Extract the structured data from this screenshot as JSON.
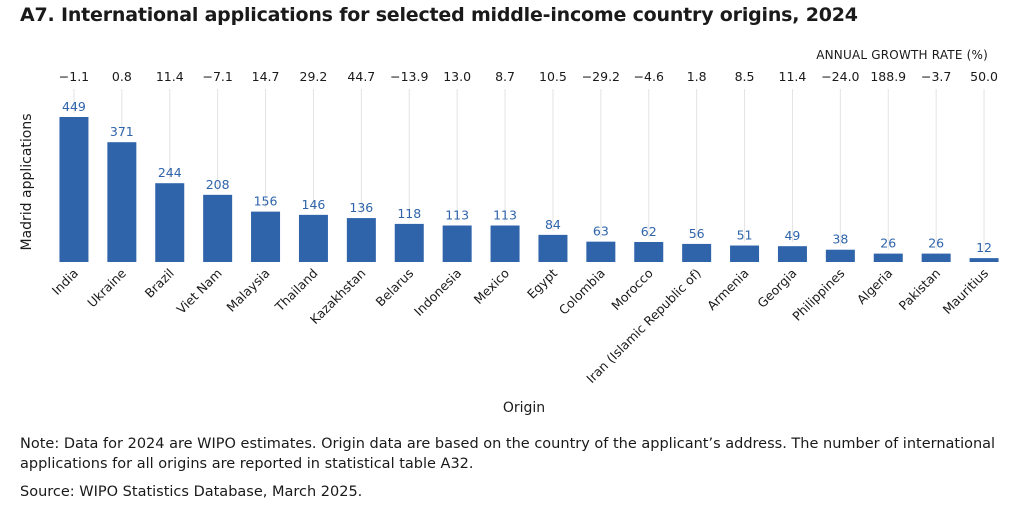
{
  "title": "A7. International applications for selected middle-income country origins, 2024",
  "growth_header": "ANNUAL GROWTH RATE (%)",
  "note": "Note: Data for 2024 are WIPO estimates. Origin data are based on the country of the applicant’s address. The number of international applications for all origins are reported in statistical table A32.",
  "source": "Source: WIPO Statistics Database, March 2025.",
  "chart_data": {
    "type": "bar",
    "title": "A7. International applications for selected middle-income country origins, 2024",
    "xlabel": "Origin",
    "ylabel": "Madrid applications",
    "ylim": [
      0,
      449
    ],
    "grid": false,
    "bar_color": "#2f64ab",
    "label_color": "#2f64ab",
    "categories": [
      "India",
      "Ukraine",
      "Brazil",
      "Viet Nam",
      "Malaysia",
      "Thailand",
      "Kazakhstan",
      "Belarus",
      "Indonesia",
      "Mexico",
      "Egypt",
      "Colombia",
      "Morocco",
      "Iran (Islamic Republic of)",
      "Armenia",
      "Georgia",
      "Philippines",
      "Algeria",
      "Pakistan",
      "Mauritius"
    ],
    "values": [
      449,
      371,
      244,
      208,
      156,
      146,
      136,
      118,
      113,
      113,
      84,
      63,
      62,
      56,
      51,
      49,
      38,
      26,
      26,
      12
    ],
    "growth_rates": [
      "−1.1",
      "0.8",
      "11.4",
      "−7.1",
      "14.7",
      "29.2",
      "44.7",
      "−13.9",
      "13.0",
      "8.7",
      "10.5",
      "−29.2",
      "−4.6",
      "1.8",
      "8.5",
      "11.4",
      "−24.0",
      "188.9",
      "−3.7",
      "50.0"
    ]
  }
}
